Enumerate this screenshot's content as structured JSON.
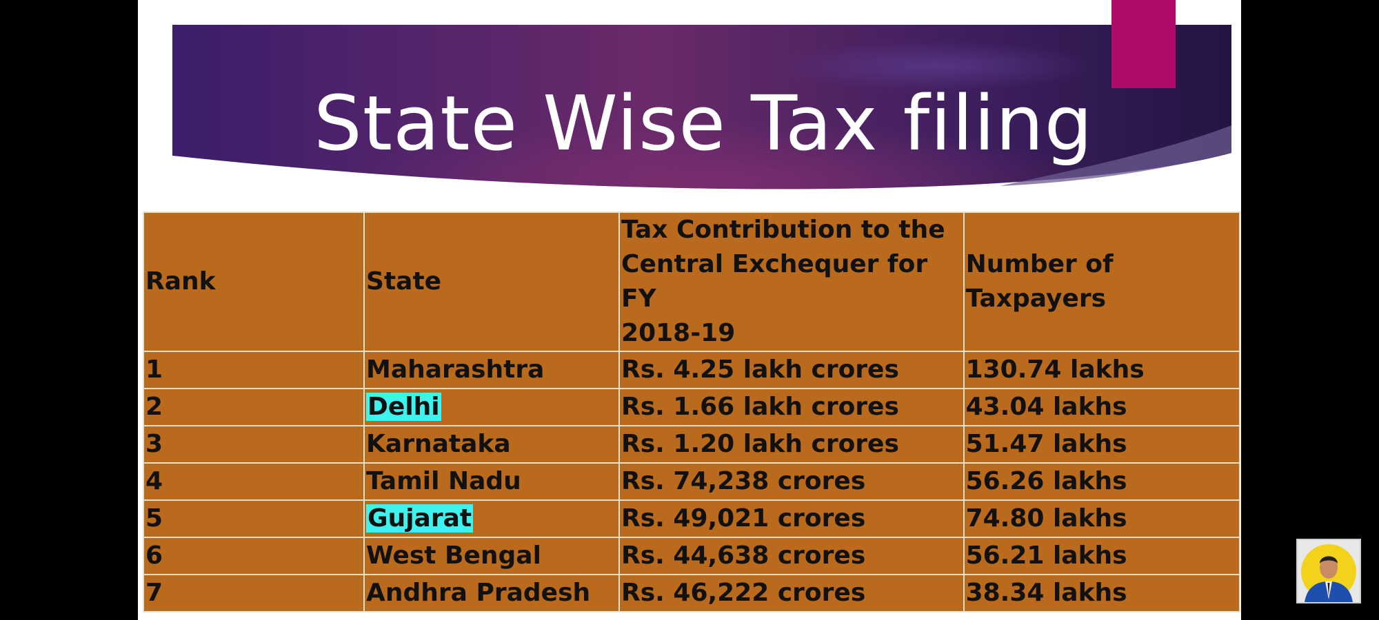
{
  "slide": {
    "title": "State Wise Tax filing",
    "colors": {
      "banner_left": "#3b1e6a",
      "banner_mid": "#6a2a6a",
      "banner_right": "#241444",
      "accent_block": "#b00a6a",
      "table_bg": "#b96a1c",
      "highlight": "#3ef2ee"
    }
  },
  "table": {
    "headers": {
      "rank": "Rank",
      "state": "State",
      "tax_line1": "Tax Contribution to the",
      "tax_line2": "Central Exchequer for FY",
      "tax_line3": "2018-19",
      "taxpayers_line1": "Number of",
      "taxpayers_line2": "Taxpayers"
    },
    "rows": [
      {
        "rank": "1",
        "state": "Maharashtra",
        "tax": "Rs. 4.25 lakh crores",
        "taxpayers": "130.74 lakhs"
      },
      {
        "rank": "2",
        "state": "Delhi",
        "tax": "Rs. 1.66 lakh crores",
        "taxpayers": "43.04 lakhs"
      },
      {
        "rank": "3",
        "state": "Karnataka",
        "tax": "Rs. 1.20 lakh crores",
        "taxpayers": "51.47 lakhs"
      },
      {
        "rank": "4",
        "state": "Tamil Nadu",
        "tax": "Rs. 74,238 crores",
        "taxpayers": "56.26 lakhs"
      },
      {
        "rank": "5",
        "state": "Gujarat",
        "tax": "Rs. 49,021 crores",
        "taxpayers": "74.80 lakhs"
      },
      {
        "rank": "6",
        "state": "West Bengal",
        "tax": "Rs. 44,638 crores",
        "taxpayers": "56.21 lakhs"
      },
      {
        "rank": "7",
        "state": "Andhra Pradesh",
        "tax": "Rs. 46,222 crores",
        "taxpayers": "38.34 lakhs"
      }
    ]
  },
  "presenter": {
    "icon": "presenter-avatar-icon"
  }
}
